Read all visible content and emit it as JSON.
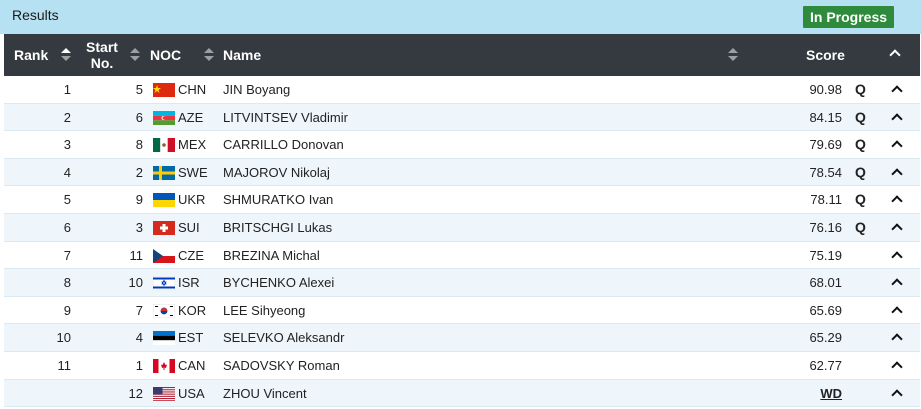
{
  "header": {
    "title": "Results",
    "status": "In Progress",
    "status_color": "#2e8b3c"
  },
  "columns": {
    "rank": "Rank",
    "start_line1": "Start",
    "start_line2": "No.",
    "noc": "NOC",
    "name": "Name",
    "score": "Score"
  },
  "rows": [
    {
      "rank": "1",
      "start": "5",
      "noc": "CHN",
      "name": "JIN Boyang",
      "score": "90.98",
      "q": "Q",
      "flag": "chn"
    },
    {
      "rank": "2",
      "start": "6",
      "noc": "AZE",
      "name": "LITVINTSEV Vladimir",
      "score": "84.15",
      "q": "Q",
      "flag": "aze"
    },
    {
      "rank": "3",
      "start": "8",
      "noc": "MEX",
      "name": "CARRILLO Donovan",
      "score": "79.69",
      "q": "Q",
      "flag": "mex"
    },
    {
      "rank": "4",
      "start": "2",
      "noc": "SWE",
      "name": "MAJOROV Nikolaj",
      "score": "78.54",
      "q": "Q",
      "flag": "swe"
    },
    {
      "rank": "5",
      "start": "9",
      "noc": "UKR",
      "name": "SHMURATKO Ivan",
      "score": "78.11",
      "q": "Q",
      "flag": "ukr"
    },
    {
      "rank": "6",
      "start": "3",
      "noc": "SUI",
      "name": "BRITSCHGI Lukas",
      "score": "76.16",
      "q": "Q",
      "flag": "sui"
    },
    {
      "rank": "7",
      "start": "11",
      "noc": "CZE",
      "name": "BREZINA Michal",
      "score": "75.19",
      "q": "",
      "flag": "cze"
    },
    {
      "rank": "8",
      "start": "10",
      "noc": "ISR",
      "name": "BYCHENKO Alexei",
      "score": "68.01",
      "q": "",
      "flag": "isr"
    },
    {
      "rank": "9",
      "start": "7",
      "noc": "KOR",
      "name": "LEE Sihyeong",
      "score": "65.69",
      "q": "",
      "flag": "kor"
    },
    {
      "rank": "10",
      "start": "4",
      "noc": "EST",
      "name": "SELEVKO Aleksandr",
      "score": "65.29",
      "q": "",
      "flag": "est"
    },
    {
      "rank": "11",
      "start": "1",
      "noc": "CAN",
      "name": "SADOVSKY Roman",
      "score": "62.77",
      "q": "",
      "flag": "can"
    },
    {
      "rank": "",
      "start": "12",
      "noc": "USA",
      "name": "ZHOU Vincent",
      "score": "WD",
      "q": "",
      "flag": "usa"
    }
  ]
}
